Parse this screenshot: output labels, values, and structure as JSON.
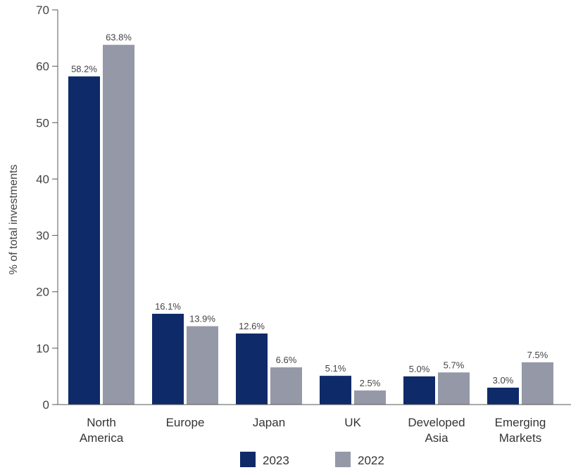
{
  "chart_data": {
    "type": "bar",
    "ylabel": "% of total investments",
    "ylim": [
      0,
      70
    ],
    "yticks": [
      0,
      10,
      20,
      30,
      40,
      50,
      60,
      70
    ],
    "grid": false,
    "legend_position": "bottom",
    "categories": [
      [
        "North",
        "America"
      ],
      [
        "Europe"
      ],
      [
        "Japan"
      ],
      [
        "UK"
      ],
      [
        "Developed",
        "Asia"
      ],
      [
        "Emerging",
        "Markets"
      ]
    ],
    "series": [
      {
        "name": "2023",
        "color": "#0f2a68",
        "values": [
          58.2,
          16.1,
          12.6,
          5.1,
          5.0,
          3.0
        ],
        "labels": [
          "58.2%",
          "16.1%",
          "12.6%",
          "5.1%",
          "5.0%",
          "3.0%"
        ]
      },
      {
        "name": "2022",
        "color": "#9598a7",
        "values": [
          63.8,
          13.9,
          6.6,
          2.5,
          5.7,
          7.5
        ],
        "labels": [
          "63.8%",
          "13.9%",
          "6.6%",
          "2.5%",
          "5.7%",
          "7.5%"
        ]
      }
    ]
  }
}
